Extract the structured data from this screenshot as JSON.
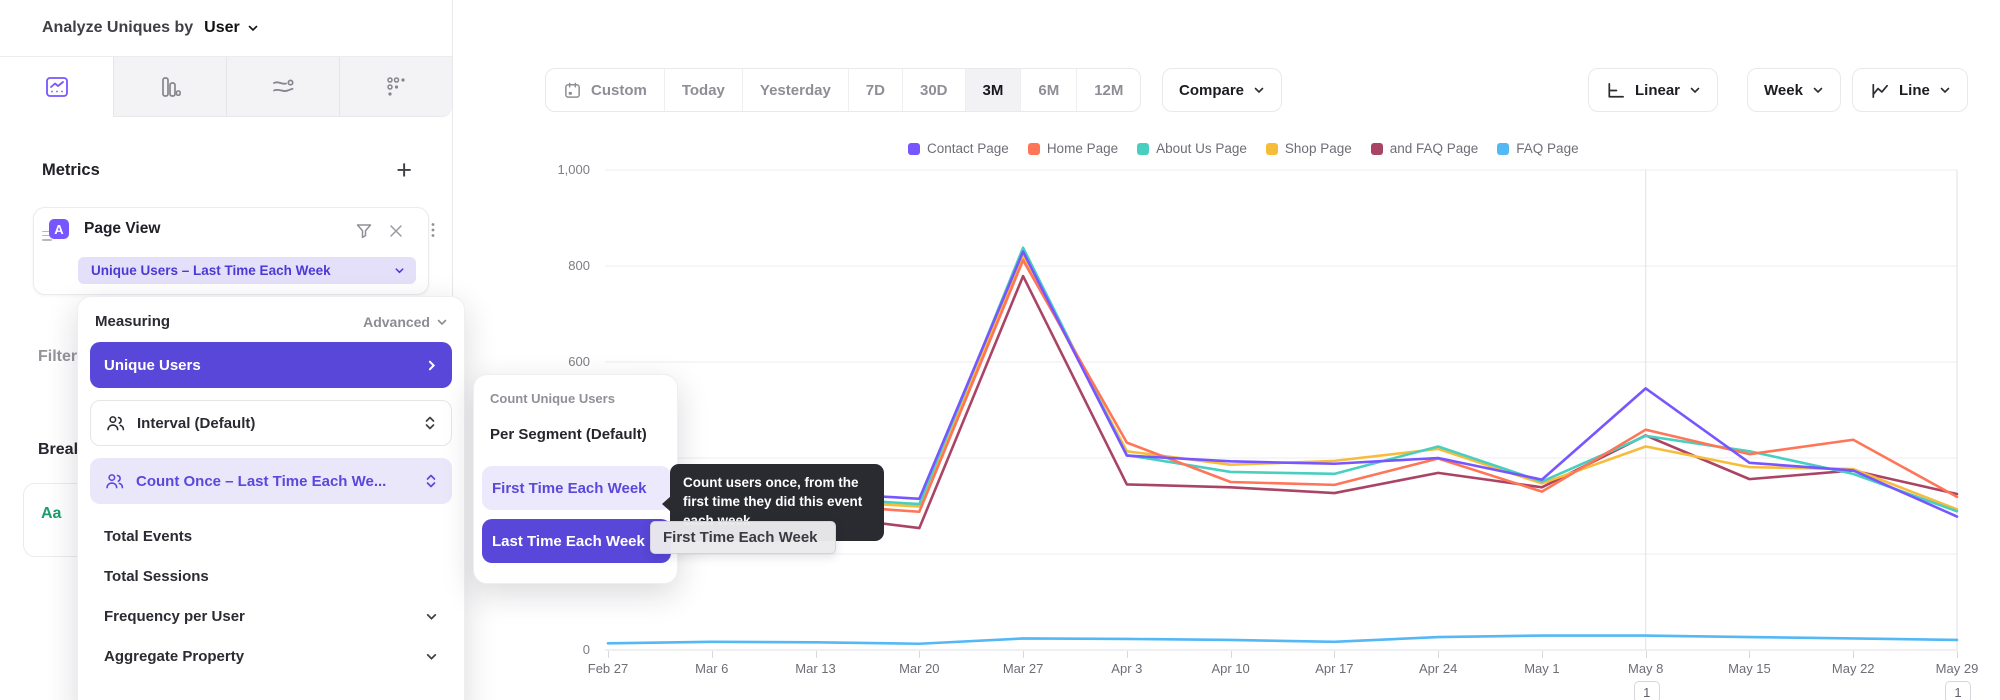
{
  "header": {
    "prefix": "Analyze Uniques by",
    "entity": "User"
  },
  "sidebar": {
    "metrics_title": "Metrics",
    "filters_title": "Filters",
    "breakdowns_title": "Breakdowns",
    "breakdown_chip": "Aa",
    "metric": {
      "badge": "A",
      "event": "Page View",
      "measurement": "Unique Users – Last Time Each Week"
    }
  },
  "measuring_menu": {
    "title": "Measuring",
    "advanced_label": "Advanced",
    "unique_users": "Unique Users",
    "interval": "Interval (Default)",
    "count_once": "Count Once – Last Time Each We...",
    "total_events": "Total Events",
    "total_sessions": "Total Sessions",
    "frequency": "Frequency per User",
    "aggregate": "Aggregate Property"
  },
  "count_menu": {
    "header": "Count Unique Users",
    "per_segment": "Per Segment (Default)",
    "first_time": "First Time Each Week",
    "last_time": "Last Time Each Week"
  },
  "tooltip": {
    "text": "Count users once, from the first time they did this event each week"
  },
  "drag_label": "First Time Each Week",
  "toolbar": {
    "ranges": [
      "Custom",
      "Today",
      "Yesterday",
      "7D",
      "30D",
      "3M",
      "6M",
      "12M"
    ],
    "selected_range": "3M",
    "compare_label": "Compare",
    "scale_label": "Linear",
    "interval_label": "Week",
    "chart_type_label": "Line"
  },
  "chart_data": {
    "type": "line",
    "title": "",
    "xlabel": "",
    "ylabel": "",
    "grid": true,
    "legend_position": "top",
    "ylim": [
      0,
      1000
    ],
    "yticks": [
      0,
      200,
      400,
      600,
      800,
      1000
    ],
    "categories": [
      "Feb 27",
      "Mar 6",
      "Mar 13",
      "Mar 20",
      "Mar 27",
      "Apr 3",
      "Apr 10",
      "Apr 17",
      "Apr 24",
      "May 1",
      "May 8",
      "May 15",
      "May 22",
      "May 29"
    ],
    "series": [
      {
        "name": "Contact Page",
        "color": "#7856ff",
        "values": [
          345,
          335,
          328,
          315,
          830,
          405,
          393,
          388,
          400,
          355,
          545,
          390,
          374,
          278
        ]
      },
      {
        "name": "Home Page",
        "color": "#ff7557",
        "values": [
          325,
          312,
          303,
          288,
          812,
          432,
          350,
          344,
          399,
          330,
          459,
          408,
          438,
          319
        ]
      },
      {
        "name": "About Us Page",
        "color": "#49cfc0",
        "values": [
          336,
          324,
          317,
          304,
          838,
          406,
          371,
          367,
          424,
          351,
          446,
          414,
          367,
          289
        ]
      },
      {
        "name": "Shop Page",
        "color": "#f8bc3b",
        "values": [
          331,
          319,
          311,
          299,
          821,
          414,
          386,
          394,
          419,
          347,
          424,
          381,
          377,
          293
        ]
      },
      {
        "name": "and FAQ Page",
        "color": "#aa4465",
        "values": [
          300,
          289,
          281,
          254,
          779,
          345,
          339,
          327,
          369,
          339,
          447,
          356,
          374,
          325
        ]
      },
      {
        "name": "FAQ Page",
        "color": "#54b8f5",
        "values": [
          14,
          17,
          16,
          13,
          24,
          23,
          21,
          17,
          27,
          30,
          30,
          27,
          24,
          21
        ]
      }
    ],
    "annotations": [
      {
        "label": "1",
        "category": "May 8"
      },
      {
        "label": "1",
        "category": "May 29"
      }
    ]
  }
}
